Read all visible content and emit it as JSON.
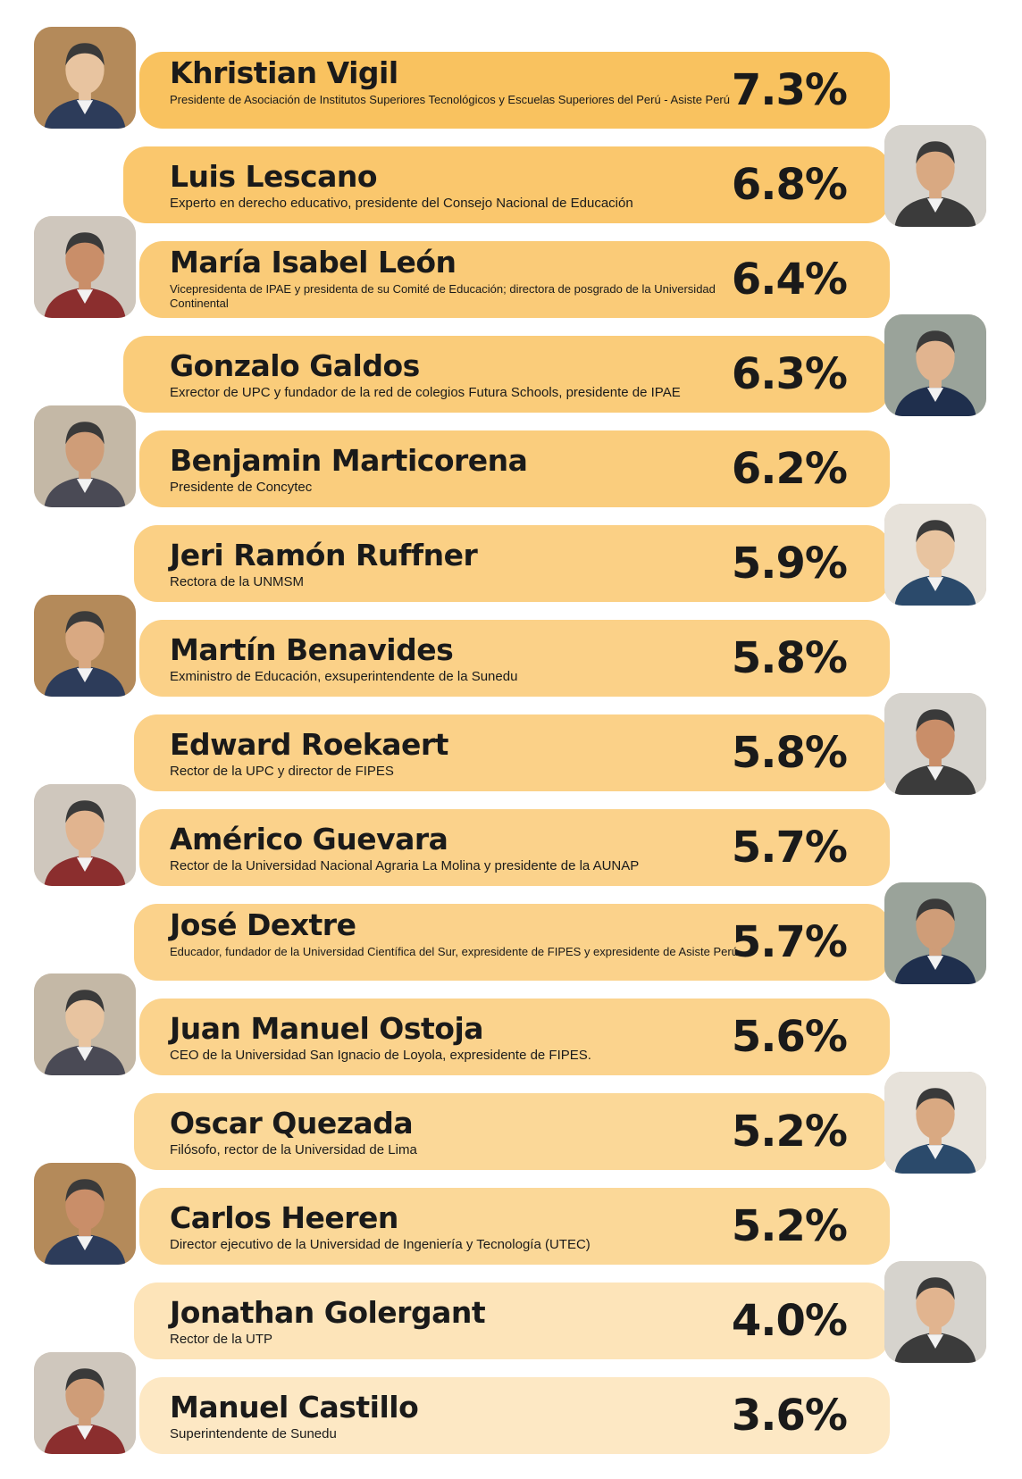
{
  "chart_data": {
    "type": "bar",
    "title": "",
    "xlabel": "",
    "ylabel": "",
    "orientation": "horizontal",
    "categories": [
      "Khristian Vigil",
      "Luis Lescano",
      "María Isabel León",
      "Gonzalo Galdos",
      "Benjamin Marticorena",
      "Jeri Ramón Ruffner",
      "Martín Benavides",
      "Edward Roekaert",
      "Américo Guevara",
      "José Dextre",
      "Juan Manuel Ostoja",
      "Oscar Quezada",
      "Carlos Heeren",
      "Jonathan Golergant",
      "Manuel Castillo"
    ],
    "values": [
      7.3,
      6.8,
      6.4,
      6.3,
      6.2,
      5.9,
      5.8,
      5.8,
      5.7,
      5.7,
      5.6,
      5.2,
      5.2,
      4.0,
      3.6
    ],
    "value_labels": [
      "7.3%",
      "6.8%",
      "6.4%",
      "6.3%",
      "6.2%",
      "5.9%",
      "5.8%",
      "5.8%",
      "5.7%",
      "5.7%",
      "5.6%",
      "5.2%",
      "5.2%",
      "4.0%",
      "3.6%"
    ],
    "descriptions": [
      "Presidente de Asociación de Institutos Superiores Tecnológicos y Escuelas Superiores del Perú - Asiste Perú",
      "Experto en derecho educativo, presidente del Consejo Nacional de Educación",
      "Vicepresidenta de IPAE y presidenta de su Comité de Educación; directora de posgrado de la Universidad Continental",
      "Exrector de UPC y fundador de la red de colegios Futura Schools, presidente de IPAE",
      "Presidente de Concytec",
      "Rectora de la UNMSM",
      "Exministro de Educación, exsuperintendente de la Sunedu",
      "Rector de la UPC y director de FIPES",
      "Rector de la Universidad Nacional Agraria La Molina y presidente de la AUNAP",
      "Educador, fundador de la Universidad Científica del Sur, expresidente de FIPES y expresidente de Asiste Perú",
      "CEO de la Universidad San Ignacio de Loyola, expresidente de FIPES.",
      "Filósofo, rector de la Universidad de Lima",
      "Director ejecutivo de la Universidad de Ingeniería y Tecnología (UTEC)",
      "Rector de la UTP",
      "Superintendente de Sunedu"
    ],
    "colors": {
      "max": "#f9c25f",
      "min": "#fde8c4",
      "text": "#1a1a1a"
    }
  }
}
